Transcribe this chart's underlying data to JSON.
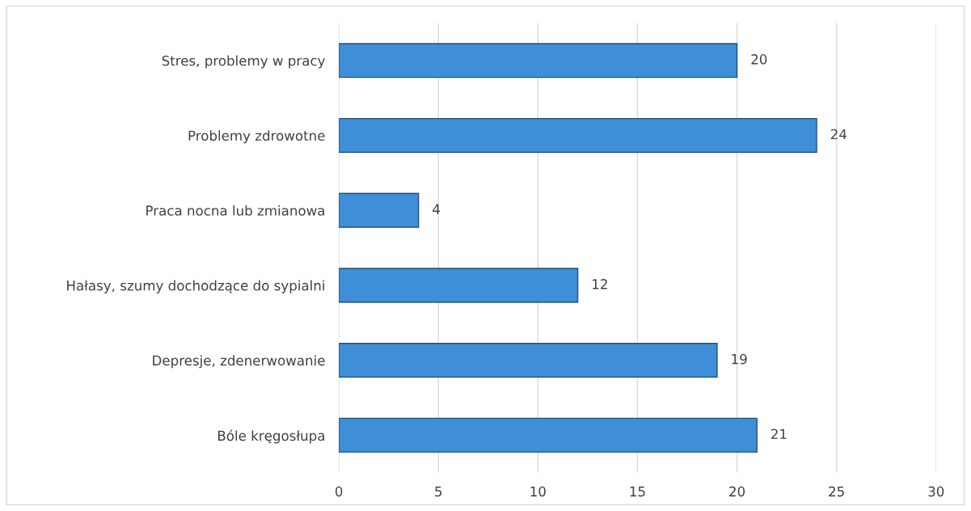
{
  "chart_data": {
    "type": "bar",
    "orientation": "horizontal",
    "categories": [
      "Stres, problemy w pracy",
      "Problemy zdrowotne",
      "Praca nocna lub zmianowa",
      "Hałasy, szumy dochodzące do sypialni",
      "Depresje, zdenerwowanie",
      "Bóle kręgosłupa"
    ],
    "values": [
      20,
      24,
      4,
      12,
      19,
      21
    ],
    "color": "#3f8ed8",
    "xlim": [
      0,
      30
    ],
    "xticks": [
      0,
      5,
      10,
      15,
      20,
      25,
      30
    ],
    "grid": "x",
    "data_labels": true
  }
}
